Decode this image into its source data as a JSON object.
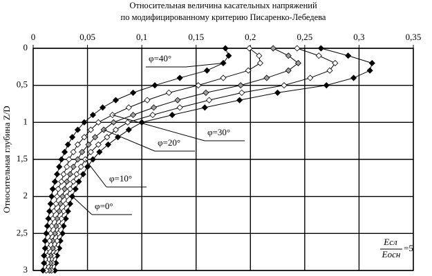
{
  "chart_data": {
    "type": "line",
    "title": [
      "Относительная величина касательных напряжений",
      "по модифицированному критерию Писаренко-Лебедева"
    ],
    "y_label": "Относительная глубина Z/D",
    "annotation": {
      "numerator": "Eсл",
      "denominator": "Eосн",
      "suffix": "=5"
    },
    "xlim": [
      0,
      0.35
    ],
    "ylim": [
      0,
      3
    ],
    "y_inverted": true,
    "x_axis_position": "top",
    "grid": true,
    "xticks": [
      0,
      {
        "value": 0.05,
        "label": "0,05"
      },
      {
        "value": 0.1,
        "label": "0,1"
      },
      {
        "value": 0.15,
        "label": "0,15"
      },
      {
        "value": 0.2,
        "label": "0,2"
      },
      {
        "value": 0.25,
        "label": "0,25"
      },
      {
        "value": 0.3,
        "label": "0,3"
      },
      {
        "value": 0.35,
        "label": "0,35"
      }
    ],
    "yticks": [
      0,
      {
        "value": 0.5,
        "label": "0,5"
      },
      1,
      {
        "value": 1.5,
        "label": "1,5"
      },
      2,
      {
        "value": 2.5,
        "label": "2,5"
      },
      3
    ],
    "y": [
      0,
      0.1,
      0.2,
      0.3,
      0.4,
      0.5,
      0.6,
      0.7,
      0.8,
      0.9,
      1.0,
      1.1,
      1.2,
      1.3,
      1.4,
      1.5,
      1.6,
      1.7,
      1.8,
      1.9,
      2.0,
      2.1,
      2.2,
      2.3,
      2.4,
      2.5,
      2.6,
      2.7,
      2.8,
      2.9,
      3.0
    ],
    "series": [
      {
        "name": "φ=0°",
        "color": "#000000",
        "x": [
          0.265,
          0.29,
          0.312,
          0.31,
          0.295,
          0.27,
          0.225,
          0.19,
          0.158,
          0.128,
          0.1,
          0.088,
          0.078,
          0.069,
          0.061,
          0.055,
          0.05,
          0.046,
          0.042,
          0.039,
          0.036,
          0.034,
          0.032,
          0.03,
          0.028,
          0.027,
          0.025,
          0.024,
          0.022,
          0.021,
          0.02
        ]
      },
      {
        "name": "φ=10°",
        "color": "#ffffff",
        "x": [
          0.243,
          0.263,
          0.278,
          0.273,
          0.255,
          0.231,
          0.192,
          0.162,
          0.135,
          0.11,
          0.087,
          0.076,
          0.068,
          0.06,
          0.053,
          0.048,
          0.044,
          0.04,
          0.037,
          0.034,
          0.031,
          0.03,
          0.028,
          0.026,
          0.024,
          0.023,
          0.022,
          0.021,
          0.019,
          0.018,
          0.017
        ]
      },
      {
        "name": "φ=20°",
        "color": "#a0a0a0",
        "x": [
          0.221,
          0.235,
          0.244,
          0.235,
          0.215,
          0.191,
          0.159,
          0.133,
          0.111,
          0.092,
          0.074,
          0.065,
          0.057,
          0.051,
          0.045,
          0.041,
          0.037,
          0.034,
          0.031,
          0.029,
          0.027,
          0.025,
          0.024,
          0.022,
          0.021,
          0.02,
          0.018,
          0.018,
          0.016,
          0.016,
          0.015
        ]
      },
      {
        "name": "φ=30°",
        "color": "#ffffff",
        "x": [
          0.199,
          0.208,
          0.209,
          0.198,
          0.175,
          0.152,
          0.125,
          0.105,
          0.088,
          0.073,
          0.06,
          0.053,
          0.047,
          0.041,
          0.037,
          0.033,
          0.031,
          0.028,
          0.026,
          0.023,
          0.022,
          0.021,
          0.019,
          0.018,
          0.017,
          0.016,
          0.015,
          0.014,
          0.013,
          0.013,
          0.012
        ]
      },
      {
        "name": "φ=40°",
        "color": "#000000",
        "x": [
          0.177,
          0.18,
          0.175,
          0.16,
          0.135,
          0.112,
          0.092,
          0.076,
          0.064,
          0.055,
          0.047,
          0.041,
          0.036,
          0.032,
          0.029,
          0.026,
          0.024,
          0.022,
          0.02,
          0.018,
          0.017,
          0.016,
          0.015,
          0.014,
          0.013,
          0.012,
          0.011,
          0.011,
          0.01,
          0.01,
          0.009
        ]
      }
    ]
  }
}
